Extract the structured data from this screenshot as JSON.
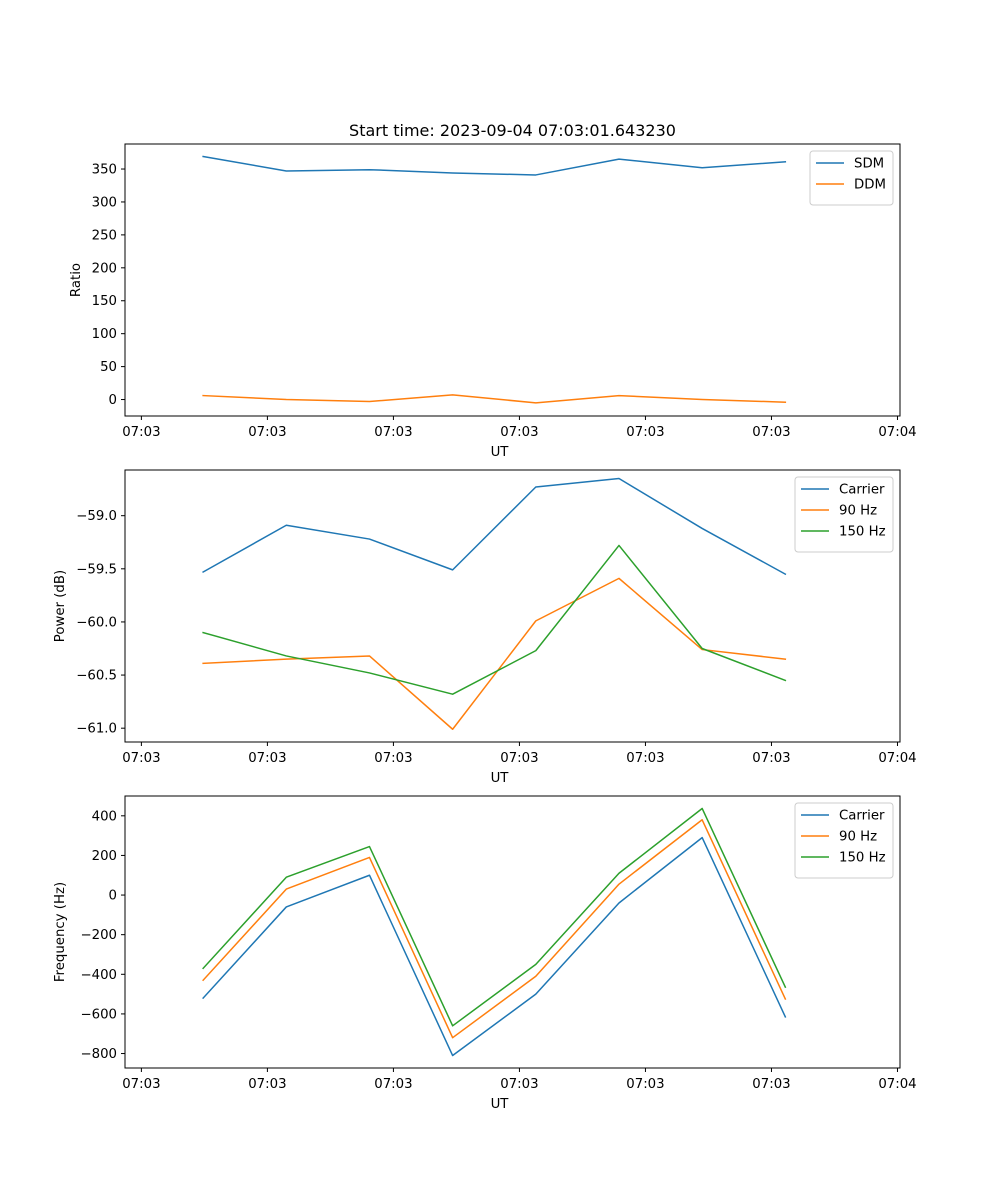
{
  "figure_title": "Start time: 2023-09-04 07:03:01.643230",
  "colors": {
    "blue": "#1f77b4",
    "orange": "#ff7f0e",
    "green": "#2ca02c"
  },
  "chart_data": [
    {
      "type": "line",
      "title": "Start time: 2023-09-04 07:03:01.643230",
      "xlabel": "UT",
      "ylabel": "Ratio",
      "x_tick_labels": [
        "07:03",
        "07:03",
        "07:03",
        "07:03",
        "07:03",
        "07:03",
        "07:04"
      ],
      "x_tick_positions": [
        0,
        1,
        2,
        3,
        4,
        5,
        6
      ],
      "xlim": [
        -0.13,
        6.02
      ],
      "ylim": [
        -25,
        388
      ],
      "yticks": [
        0,
        50,
        100,
        150,
        200,
        250,
        300,
        350
      ],
      "x": [
        0.49,
        1.15,
        1.81,
        2.47,
        3.13,
        3.79,
        4.45,
        5.11
      ],
      "legend": "top-right",
      "series": [
        {
          "name": "SDM",
          "color": "#1f77b4",
          "values": [
            369,
            347,
            349,
            344,
            341,
            365,
            352,
            361
          ]
        },
        {
          "name": "DDM",
          "color": "#ff7f0e",
          "values": [
            6,
            0,
            -3,
            7,
            -5,
            6,
            0,
            -4
          ]
        }
      ]
    },
    {
      "type": "line",
      "title": "",
      "xlabel": "UT",
      "ylabel": "Power (dB)",
      "x_tick_labels": [
        "07:03",
        "07:03",
        "07:03",
        "07:03",
        "07:03",
        "07:03",
        "07:04"
      ],
      "x_tick_positions": [
        0,
        1,
        2,
        3,
        4,
        5,
        6
      ],
      "xlim": [
        -0.13,
        6.02
      ],
      "ylim": [
        -61.13,
        -58.57
      ],
      "yticks": [
        -61.0,
        -60.5,
        -60.0,
        -59.5,
        -59.0
      ],
      "ytick_labels": [
        "−61.0",
        "−60.5",
        "−60.0",
        "−59.5",
        "−59.0"
      ],
      "x": [
        0.49,
        1.15,
        1.81,
        2.47,
        3.13,
        3.79,
        4.45,
        5.11
      ],
      "legend": "top-right",
      "series": [
        {
          "name": "Carrier",
          "color": "#1f77b4",
          "values": [
            -59.53,
            -59.09,
            -59.22,
            -59.51,
            -58.73,
            -58.65,
            -59.12,
            -59.55
          ]
        },
        {
          "name": "90 Hz",
          "color": "#ff7f0e",
          "values": [
            -60.39,
            -60.35,
            -60.32,
            -61.01,
            -59.99,
            -59.59,
            -60.26,
            -60.35
          ]
        },
        {
          "name": "150 Hz",
          "color": "#2ca02c",
          "values": [
            -60.1,
            -60.32,
            -60.48,
            -60.68,
            -60.27,
            -59.28,
            -60.25,
            -60.55
          ]
        }
      ]
    },
    {
      "type": "line",
      "title": "",
      "xlabel": "UT",
      "ylabel": "Frequency (Hz)",
      "x_tick_labels": [
        "07:03",
        "07:03",
        "07:03",
        "07:03",
        "07:03",
        "07:03",
        "07:04"
      ],
      "x_tick_positions": [
        0,
        1,
        2,
        3,
        4,
        5,
        6
      ],
      "xlim": [
        -0.13,
        6.02
      ],
      "ylim": [
        -873,
        500
      ],
      "yticks": [
        -800,
        -600,
        -400,
        -200,
        0,
        200,
        400
      ],
      "ytick_labels": [
        "−800",
        "−600",
        "−400",
        "−200",
        "0",
        "200",
        "400"
      ],
      "x": [
        0.49,
        1.15,
        1.81,
        2.47,
        3.13,
        3.79,
        4.45,
        5.11
      ],
      "legend": "top-right",
      "series": [
        {
          "name": "Carrier",
          "color": "#1f77b4",
          "values": [
            -520,
            -60,
            100,
            -810,
            -500,
            -40,
            290,
            -615
          ]
        },
        {
          "name": "90 Hz",
          "color": "#ff7f0e",
          "values": [
            -430,
            30,
            190,
            -720,
            -410,
            55,
            380,
            -525
          ]
        },
        {
          "name": "150 Hz",
          "color": "#2ca02c",
          "values": [
            -370,
            90,
            245,
            -660,
            -350,
            110,
            437,
            -465
          ]
        }
      ]
    }
  ]
}
